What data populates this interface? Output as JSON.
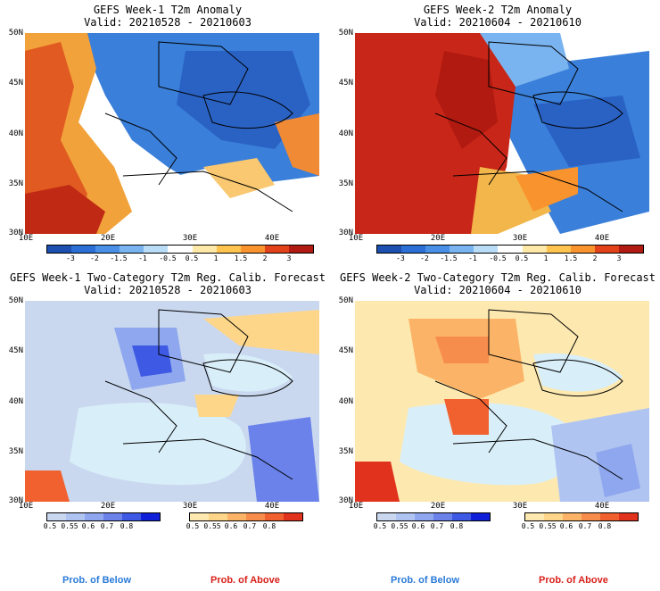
{
  "panels": [
    {
      "title": "GEFS Week-1 T2m Anomaly",
      "valid": "Valid: 20210528 - 20210603"
    },
    {
      "title": "GEFS Week-2 T2m Anomaly",
      "valid": "Valid: 20210604 - 20210610"
    },
    {
      "title": "GEFS Week-1 Two-Category T2m Reg. Calib. Forecast",
      "valid": "Valid: 20210528 - 20210603"
    },
    {
      "title": "GEFS Week-2 Two-Category T2m Reg. Calib. Forecast",
      "valid": "Valid: 20210604 - 20210610"
    }
  ],
  "lat_labels": [
    "50N",
    "45N",
    "40N",
    "35N",
    "30N"
  ],
  "lon_labels": [
    "10E",
    "20E",
    "30E",
    "40E"
  ],
  "anomaly_ticks": [
    "-3",
    "-2",
    "-1.5",
    "-1",
    "-0.5",
    "0.5",
    "1",
    "1.5",
    "2",
    "3"
  ],
  "anomaly_colors": [
    "#1d4fb0",
    "#2b6fd6",
    "#4a8fe6",
    "#7ab4f0",
    "#b9dcf7",
    "#ffffff",
    "#ffe9a8",
    "#ffc44f",
    "#f9932d",
    "#e2421a",
    "#b01a10"
  ],
  "prob_ticks": [
    "0.5",
    "0.55",
    "0.6",
    "0.7",
    "0.8"
  ],
  "below_colors": [
    "#c9d8ef",
    "#b0c4f2",
    "#8ea7ee",
    "#6a82e9",
    "#3e59e3",
    "#1020d8"
  ],
  "above_colors": [
    "#fde9b0",
    "#fdd68a",
    "#fbb467",
    "#f78d4c",
    "#f0612f",
    "#e0321c"
  ],
  "legend": {
    "below": "Prob. of Below",
    "above": "Prob. of Above"
  },
  "legend_colors": {
    "below": "#2a7ad8",
    "above": "#d8201a"
  }
}
